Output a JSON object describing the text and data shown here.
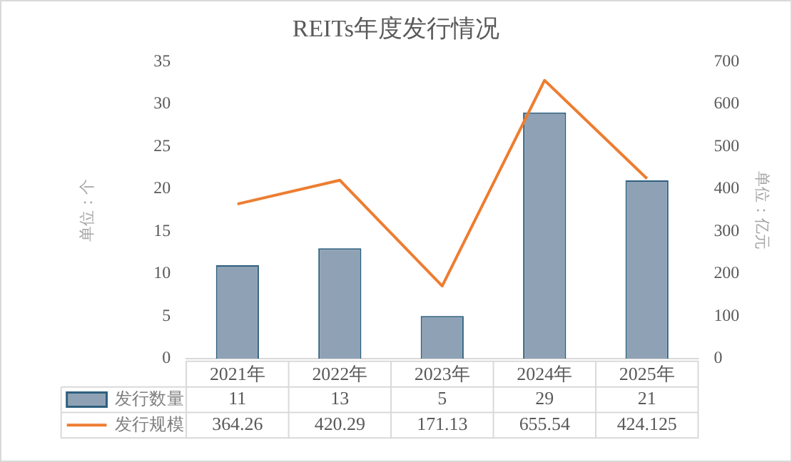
{
  "chart_data": {
    "type": "bar",
    "title": "REITs年度发行情况",
    "ylabel": "单位：个",
    "y2label": "单位：亿元",
    "categories": [
      "2021年",
      "2022年",
      "2023年",
      "2024年",
      "2025年"
    ],
    "series": [
      {
        "name": "发行数量",
        "color": "#8fa2b5",
        "values": [
          11,
          13,
          5,
          29,
          21
        ]
      },
      {
        "name": "发行规模",
        "type": "line",
        "axis": "y2",
        "color": "#ed7d31",
        "values": [
          364.26,
          420.29,
          171.13,
          655.54,
          424.125
        ]
      }
    ],
    "ylim": [
      0,
      35
    ],
    "yticks": [
      0,
      5,
      10,
      15,
      20,
      25,
      30,
      35
    ],
    "y2lim": [
      0,
      700
    ],
    "y2ticks": [
      0,
      100,
      200,
      300,
      400,
      500,
      600,
      700
    ],
    "grid": false,
    "legend": "bottom",
    "data_labels": true,
    "marker": "none"
  }
}
